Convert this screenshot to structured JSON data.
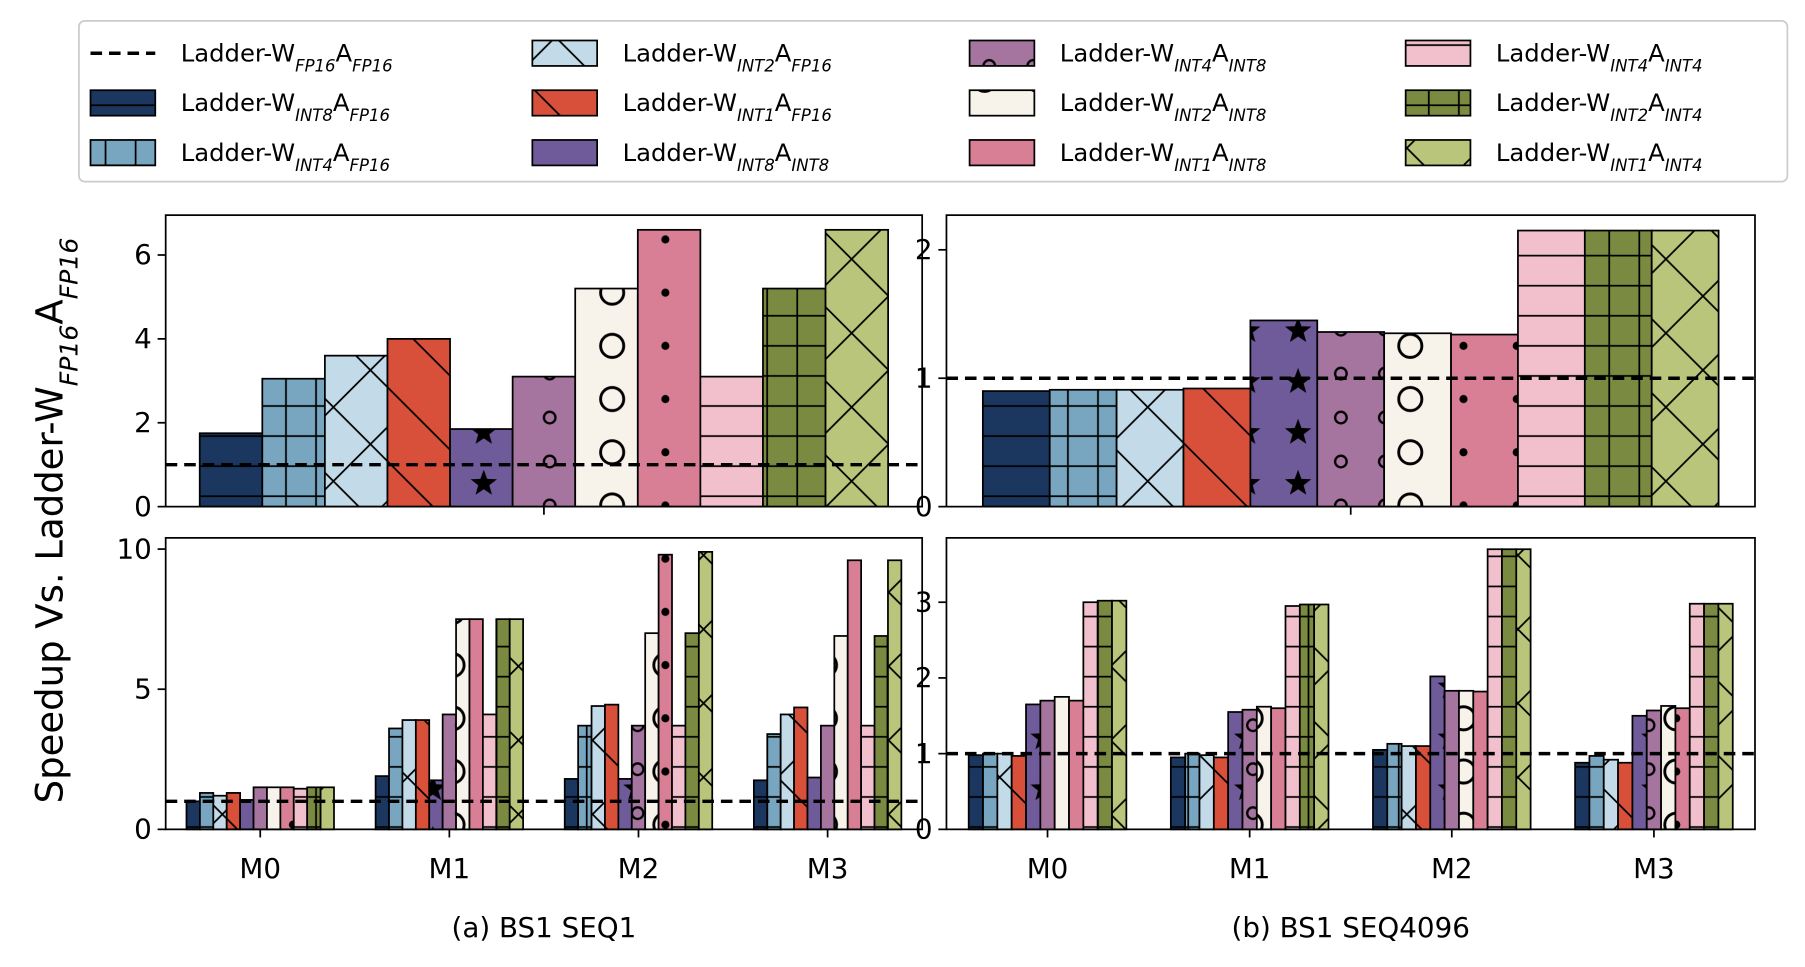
{
  "ylabel": [
    "Speedup Vs. Ladder-W",
    "FP16",
    "A",
    "FP16"
  ],
  "chart_data": [
    {
      "type": "bar",
      "categories": [
        null
      ],
      "ylim": [
        0,
        6.95
      ],
      "yticks": [
        0,
        2,
        4,
        6
      ],
      "reference": {
        "name": [
          "Ladder-W",
          "FP16",
          "A",
          "FP16"
        ],
        "value": 1,
        "style": "dashed"
      },
      "series": [
        {
          "name": [
            "Ladder-W",
            "INT8",
            "A",
            "FP16"
          ],
          "color": "#1b365f",
          "hatch": "-",
          "values": [
            1.75
          ]
        },
        {
          "name": [
            "Ladder-W",
            "INT4",
            "A",
            "FP16"
          ],
          "color": "#78a5bf",
          "hatch": "+",
          "values": [
            3.05
          ]
        },
        {
          "name": [
            "Ladder-W",
            "INT2",
            "A",
            "FP16"
          ],
          "color": "#c3dbe8",
          "hatch": "x",
          "values": [
            3.6
          ]
        },
        {
          "name": [
            "Ladder-W",
            "INT1",
            "A",
            "FP16"
          ],
          "color": "#d8503a",
          "hatch": "\\",
          "values": [
            4.0
          ]
        },
        {
          "name": [
            "Ladder-W",
            "INT8",
            "A",
            "INT8"
          ],
          "color": "#6f5a9a",
          "hatch": "*",
          "values": [
            1.85
          ]
        },
        {
          "name": [
            "Ladder-W",
            "INT4",
            "A",
            "INT8"
          ],
          "color": "#a5749f",
          "hatch": "o",
          "values": [
            3.1
          ]
        },
        {
          "name": [
            "Ladder-W",
            "INT2",
            "A",
            "INT8"
          ],
          "color": "#f7f2ea",
          "hatch": "O",
          "values": [
            5.2
          ]
        },
        {
          "name": [
            "Ladder-W",
            "INT1",
            "A",
            "INT8"
          ],
          "color": "#d87f95",
          "hatch": ".",
          "values": [
            6.6
          ]
        },
        {
          "name": [
            "Ladder-W",
            "INT4",
            "A",
            "INT4"
          ],
          "color": "#f2bfcc",
          "hatch": "-",
          "values": [
            3.1
          ]
        },
        {
          "name": [
            "Ladder-W",
            "INT2",
            "A",
            "INT4"
          ],
          "color": "#7a8a40",
          "hatch": "+",
          "values": [
            5.2
          ]
        },
        {
          "name": [
            "Ladder-W",
            "INT1",
            "A",
            "INT4"
          ],
          "color": "#b9c57a",
          "hatch": "x",
          "values": [
            6.6
          ]
        }
      ]
    },
    {
      "type": "bar",
      "categories": [
        null
      ],
      "ylim": [
        0,
        2.27
      ],
      "yticks": [
        0,
        1,
        2
      ],
      "reference": {
        "value": 1
      },
      "series": [
        {
          "values": [
            0.9
          ]
        },
        {
          "values": [
            0.91
          ]
        },
        {
          "values": [
            0.91
          ]
        },
        {
          "values": [
            0.92
          ]
        },
        {
          "values": [
            1.45
          ]
        },
        {
          "values": [
            1.36
          ]
        },
        {
          "values": [
            1.35
          ]
        },
        {
          "values": [
            1.34
          ]
        },
        {
          "values": [
            2.15
          ]
        },
        {
          "values": [
            2.15
          ]
        },
        {
          "values": [
            2.15
          ]
        }
      ]
    },
    {
      "type": "bar",
      "categories": [
        "M0",
        "M1",
        "M2",
        "M3"
      ],
      "ylim": [
        0,
        10.4
      ],
      "yticks": [
        0,
        5,
        10
      ],
      "reference": {
        "value": 1
      },
      "caption": "(a) BS1 SEQ1",
      "series": [
        {
          "values": [
            1.0,
            1.9,
            1.8,
            1.75
          ]
        },
        {
          "values": [
            1.3,
            3.6,
            3.7,
            3.4
          ]
        },
        {
          "values": [
            1.2,
            3.9,
            4.4,
            4.1
          ]
        },
        {
          "values": [
            1.3,
            3.9,
            4.45,
            4.35
          ]
        },
        {
          "values": [
            1.05,
            1.75,
            1.8,
            1.85
          ]
        },
        {
          "values": [
            1.5,
            4.1,
            3.7,
            3.7
          ]
        },
        {
          "values": [
            1.5,
            7.5,
            7.0,
            6.9
          ]
        },
        {
          "values": [
            1.5,
            7.5,
            9.8,
            9.6
          ]
        },
        {
          "values": [
            1.45,
            4.1,
            3.7,
            3.7
          ]
        },
        {
          "values": [
            1.5,
            7.5,
            7.0,
            6.9
          ]
        },
        {
          "values": [
            1.5,
            7.5,
            9.9,
            9.6
          ]
        }
      ]
    },
    {
      "type": "bar",
      "categories": [
        "M0",
        "M1",
        "M2",
        "M3"
      ],
      "ylim": [
        0,
        3.85
      ],
      "yticks": [
        0,
        1,
        2,
        3
      ],
      "reference": {
        "value": 1
      },
      "caption": "(b) BS1 SEQ4096",
      "series": [
        {
          "values": [
            0.98,
            0.95,
            1.05,
            0.88
          ]
        },
        {
          "values": [
            1.0,
            1.0,
            1.13,
            0.97
          ]
        },
        {
          "values": [
            1.0,
            0.98,
            1.1,
            0.92
          ]
        },
        {
          "values": [
            0.97,
            0.95,
            1.1,
            0.88
          ]
        },
        {
          "values": [
            1.65,
            1.55,
            2.02,
            1.5
          ]
        },
        {
          "values": [
            1.7,
            1.58,
            1.83,
            1.57
          ]
        },
        {
          "values": [
            1.75,
            1.62,
            1.83,
            1.63
          ]
        },
        {
          "values": [
            1.7,
            1.6,
            1.82,
            1.6
          ]
        },
        {
          "values": [
            3.0,
            2.95,
            3.7,
            2.98
          ]
        },
        {
          "values": [
            3.02,
            2.97,
            3.7,
            2.98
          ]
        },
        {
          "values": [
            3.02,
            2.97,
            3.7,
            2.98
          ]
        }
      ]
    }
  ]
}
